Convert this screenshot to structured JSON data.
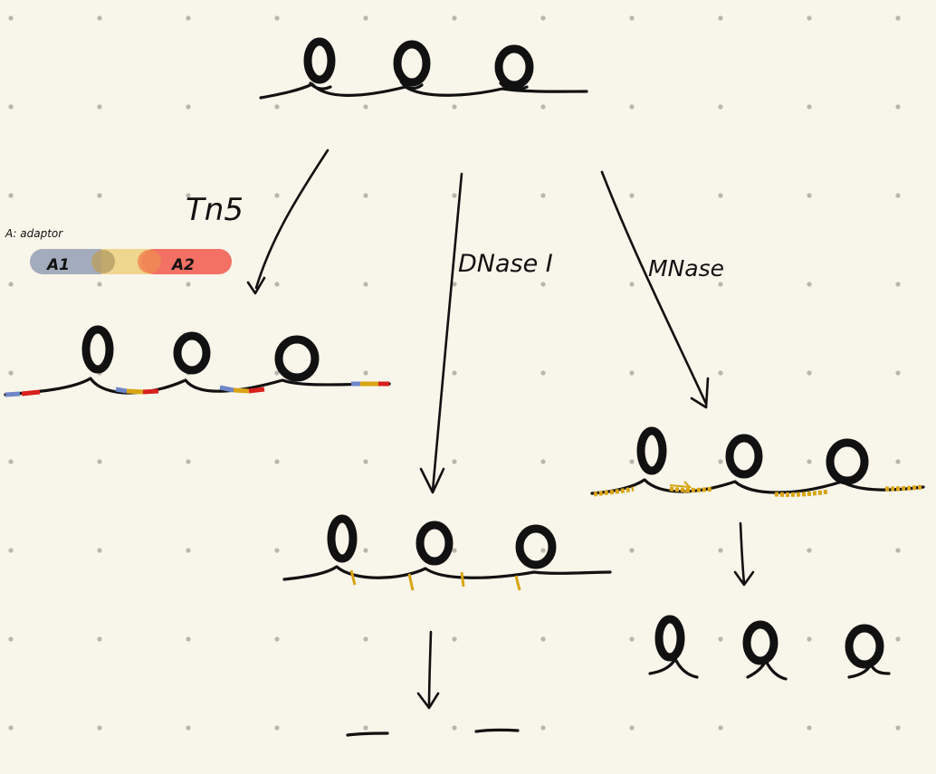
{
  "labels": {
    "tn5": "Tn5",
    "dnase": "DNase I",
    "mnase": "MNase",
    "adaptor_note": "A: adaptor",
    "a1": "A1",
    "a2": "A2"
  },
  "colors": {
    "background": "#f8f5ea",
    "dot": "#b9b6ab",
    "dna": "#111111",
    "adaptor_blue": "#6f86c8",
    "adaptor_red": "#d9201c",
    "adaptor_yellow": "#d9a514",
    "cut_mark": "#d9a514",
    "pill_a1": "#a3acbc",
    "pill_mid": "#efd68e",
    "pill_a2": "#f27064"
  }
}
